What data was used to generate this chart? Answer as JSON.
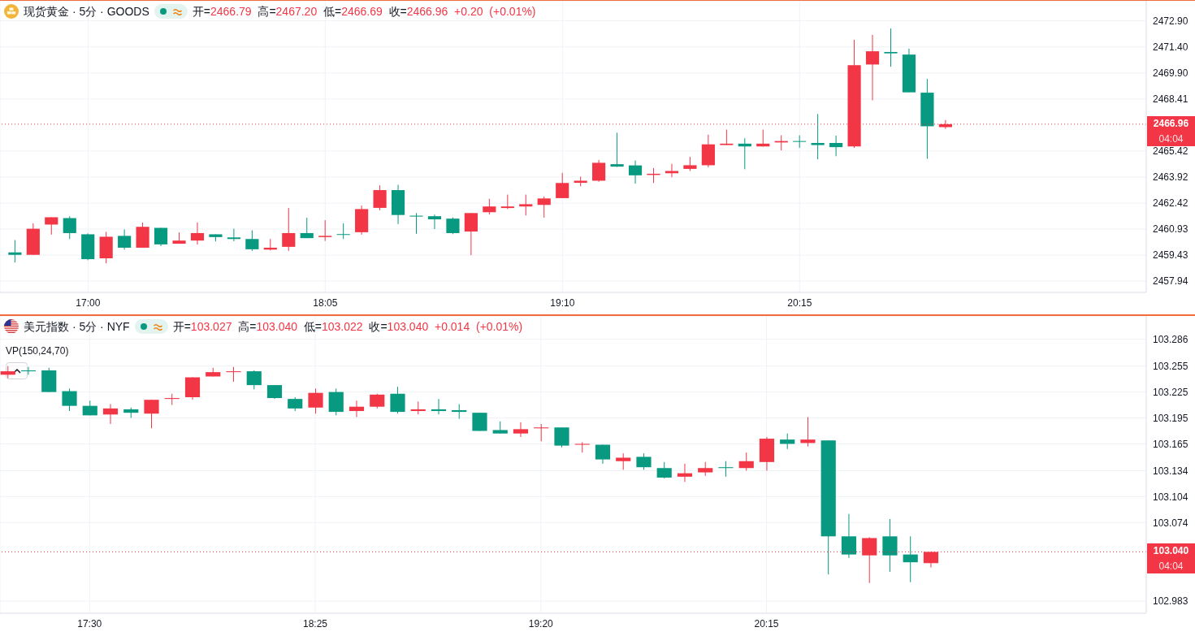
{
  "chart_data": [
    {
      "type": "candlestick",
      "title": "现货黄金 · 5分 · GOODS",
      "subtitle": "开=2466.79 高=2467.20 低=2466.69 收=2466.96 +0.20 (+0.01%)",
      "x": [
        16.6667,
        16.75,
        16.8333,
        16.9167,
        17,
        17.0833,
        17.1667,
        17.25,
        17.3333,
        17.4167,
        17.5,
        17.5833,
        17.6667,
        17.75,
        17.8333,
        17.9167,
        18,
        18.0833,
        18.1667,
        18.25,
        18.3333,
        18.4167,
        18.5,
        18.5833,
        18.6667,
        18.75,
        18.8333,
        18.9167,
        19,
        19.0833,
        19.1667,
        19.25,
        19.3333,
        19.4167,
        19.5,
        19.5833,
        19.6667,
        19.75,
        19.8333,
        19.9167,
        20,
        20.0833,
        20.1667,
        20.25,
        20.3333,
        20.4167,
        20.5,
        20.5833,
        20.6667,
        20.75,
        20.8333,
        20.9167
      ],
      "ohlc": [
        [
          2459.59,
          2460.3,
          2459.01,
          2459.45
        ],
        [
          2459.45,
          2461.26,
          2459.45,
          2460.95
        ],
        [
          2461.19,
          2461.61,
          2460.61,
          2461.61
        ],
        [
          2461.56,
          2461.67,
          2460.36,
          2460.7
        ],
        [
          2460.63,
          2460.68,
          2459.14,
          2459.2
        ],
        [
          2459.25,
          2460.77,
          2458.96,
          2460.49
        ],
        [
          2460.54,
          2460.91,
          2459.75,
          2459.86
        ],
        [
          2459.86,
          2461.31,
          2459.86,
          2461.06
        ],
        [
          2461.0,
          2461.0,
          2459.95,
          2460.05
        ],
        [
          2460.09,
          2460.74,
          2460.09,
          2460.27
        ],
        [
          2460.27,
          2461.31,
          2460.04,
          2460.7
        ],
        [
          2460.63,
          2460.63,
          2460.22,
          2460.47
        ],
        [
          2460.45,
          2460.95,
          2460.23,
          2460.36
        ],
        [
          2460.36,
          2460.86,
          2459.68,
          2459.77
        ],
        [
          2459.75,
          2460.36,
          2459.7,
          2459.86
        ],
        [
          2459.91,
          2462.14,
          2459.68,
          2460.7
        ],
        [
          2460.7,
          2461.58,
          2460.41,
          2460.41
        ],
        [
          2460.47,
          2461.44,
          2460.25,
          2460.54
        ],
        [
          2460.64,
          2461.26,
          2460.36,
          2460.61
        ],
        [
          2460.75,
          2462.28,
          2460.61,
          2462.08
        ],
        [
          2462.15,
          2463.44,
          2462.01,
          2463.17
        ],
        [
          2463.17,
          2463.48,
          2461.22,
          2461.74
        ],
        [
          2461.7,
          2461.85,
          2460.66,
          2461.65
        ],
        [
          2461.67,
          2461.76,
          2460.93,
          2461.49
        ],
        [
          2461.53,
          2461.6,
          2460.64,
          2460.7
        ],
        [
          2460.79,
          2461.85,
          2459.43,
          2461.85
        ],
        [
          2461.9,
          2462.67,
          2461.77,
          2462.23
        ],
        [
          2462.14,
          2462.91,
          2462.08,
          2462.23
        ],
        [
          2462.23,
          2462.91,
          2461.71,
          2462.36
        ],
        [
          2462.32,
          2462.8,
          2461.59,
          2462.69
        ],
        [
          2462.71,
          2464.16,
          2462.71,
          2463.58
        ],
        [
          2463.59,
          2463.94,
          2463.39,
          2463.71
        ],
        [
          2463.71,
          2464.9,
          2463.65,
          2464.74
        ],
        [
          2464.66,
          2466.47,
          2464.5,
          2464.52
        ],
        [
          2464.59,
          2464.87,
          2463.54,
          2464.02
        ],
        [
          2464.04,
          2464.44,
          2463.58,
          2464.11
        ],
        [
          2464.14,
          2464.68,
          2463.91,
          2464.27
        ],
        [
          2464.39,
          2465.08,
          2464.27,
          2464.6
        ],
        [
          2464.6,
          2466.36,
          2464.48,
          2465.8
        ],
        [
          2465.76,
          2466.65,
          2465.76,
          2465.84
        ],
        [
          2465.84,
          2466.15,
          2464.37,
          2465.68
        ],
        [
          2465.68,
          2466.65,
          2465.68,
          2465.84
        ],
        [
          2465.91,
          2466.32,
          2465.45,
          2465.99
        ],
        [
          2465.99,
          2466.32,
          2465.6,
          2465.95
        ],
        [
          2465.88,
          2467.54,
          2464.94,
          2465.76
        ],
        [
          2465.88,
          2466.3,
          2465.12,
          2465.64
        ],
        [
          2465.68,
          2471.81,
          2465.6,
          2470.35
        ],
        [
          2470.39,
          2472.09,
          2468.33,
          2471.15
        ],
        [
          2471.11,
          2472.46,
          2470.26,
          2471.03
        ],
        [
          2470.96,
          2471.3,
          2468.79,
          2468.79
        ],
        [
          2468.77,
          2469.56,
          2464.97,
          2466.84
        ],
        [
          2466.79,
          2467.2,
          2466.69,
          2466.96
        ]
      ],
      "colors": [
        "#089981",
        "#f23645",
        "#f23645",
        "#089981",
        "#089981",
        "#f23645",
        "#089981",
        "#f23645",
        "#089981",
        "#f23645",
        "#f23645",
        "#089981",
        "#089981",
        "#089981",
        "#f23645",
        "#f23645",
        "#089981",
        "#f23645",
        "#089981",
        "#f23645",
        "#f23645",
        "#089981",
        "#089981",
        "#089981",
        "#089981",
        "#f23645",
        "#f23645",
        "#f23645",
        "#f23645",
        "#f23645",
        "#f23645",
        "#f23645",
        "#f23645",
        "#089981",
        "#089981",
        "#f23645",
        "#f23645",
        "#f23645",
        "#f23645",
        "#f23645",
        "#089981",
        "#f23645",
        "#f23645",
        "#089981",
        "#089981",
        "#089981",
        "#f23645",
        "#f23645",
        "#089981",
        "#089981",
        "#089981",
        "#f23645"
      ],
      "xlim": [
        16.598,
        21.833
      ],
      "xticks": [
        {
          "value": 17,
          "label": "17:00"
        },
        {
          "value": 18.0833,
          "label": "18:05"
        },
        {
          "value": 19.1667,
          "label": "19:10"
        },
        {
          "value": 20.25,
          "label": "20:15"
        }
      ],
      "ylim": [
        2457.29,
        2474.05
      ],
      "yticks": [
        {
          "value": 2457.94,
          "label": "2457.94"
        },
        {
          "value": 2459.43,
          "label": "2459.43"
        },
        {
          "value": 2460.93,
          "label": "2460.93"
        },
        {
          "value": 2462.42,
          "label": "2462.42"
        },
        {
          "value": 2463.92,
          "label": "2463.92"
        },
        {
          "value": 2465.42,
          "label": "2465.42"
        },
        {
          "value": 2468.41,
          "label": "2468.41"
        },
        {
          "value": 2469.9,
          "label": "2469.90"
        },
        {
          "value": 2471.4,
          "label": "2471.40"
        },
        {
          "value": 2472.9,
          "label": "2472.90"
        }
      ],
      "grid": true,
      "ref_lines": [
        {
          "axis": "y",
          "value": 2466.96,
          "label": "2466.96",
          "color": "#f23645",
          "line_style": "dotted"
        }
      ],
      "annotations": [
        "04:04"
      ]
    },
    {
      "type": "candlestick",
      "title": "美元指数 · 5分 · NYF",
      "subtitle": "开=103.027 高=103.040 低=103.022 收=103.040 +0.014 (+0.01%)",
      "x": [
        17.1667,
        17.25,
        17.3333,
        17.4167,
        17.5,
        17.5833,
        17.6667,
        17.75,
        17.8333,
        17.9167,
        18,
        18.0833,
        18.1667,
        18.25,
        18.3333,
        18.4167,
        18.5,
        18.5833,
        18.6667,
        18.75,
        18.8333,
        18.9167,
        19,
        19.0833,
        19.1667,
        19.25,
        19.3333,
        19.4167,
        19.5,
        19.5833,
        19.6667,
        19.75,
        19.8333,
        19.9167,
        20,
        20.0833,
        20.1667,
        20.25,
        20.3333,
        20.4167,
        20.5,
        20.5833,
        20.6667,
        20.75,
        20.8333,
        20.9167
      ],
      "ohlc": [
        [
          103.245,
          103.255,
          103.241,
          103.249
        ],
        [
          103.25,
          103.254,
          103.245,
          103.249
        ],
        [
          103.25,
          103.253,
          103.225,
          103.225
        ],
        [
          103.226,
          103.229,
          103.203,
          103.209
        ],
        [
          103.209,
          103.215,
          103.198,
          103.198
        ],
        [
          103.199,
          103.211,
          103.188,
          103.206
        ],
        [
          103.205,
          103.207,
          103.195,
          103.201
        ],
        [
          103.2,
          103.216,
          103.183,
          103.216
        ],
        [
          103.217,
          103.223,
          103.21,
          103.218
        ],
        [
          103.219,
          103.242,
          103.216,
          103.242
        ],
        [
          103.243,
          103.253,
          103.243,
          103.248
        ],
        [
          103.248,
          103.254,
          103.237,
          103.249
        ],
        [
          103.249,
          103.25,
          103.228,
          103.233
        ],
        [
          103.233,
          103.233,
          103.217,
          103.218
        ],
        [
          103.217,
          103.219,
          103.203,
          103.206
        ],
        [
          103.207,
          103.229,
          103.2,
          103.224
        ],
        [
          103.225,
          103.229,
          103.198,
          103.202
        ],
        [
          103.203,
          103.215,
          103.196,
          103.208
        ],
        [
          103.208,
          103.223,
          103.206,
          103.222
        ],
        [
          103.223,
          103.231,
          103.2,
          103.202
        ],
        [
          103.203,
          103.214,
          103.199,
          103.205
        ],
        [
          103.205,
          103.217,
          103.199,
          103.203
        ],
        [
          103.204,
          103.211,
          103.194,
          103.202
        ],
        [
          103.201,
          103.201,
          103.18,
          103.18
        ],
        [
          103.181,
          103.191,
          103.177,
          103.177
        ],
        [
          103.177,
          103.19,
          103.173,
          103.182
        ],
        [
          103.183,
          103.188,
          103.168,
          103.184
        ],
        [
          103.184,
          103.184,
          103.161,
          103.163
        ],
        [
          103.164,
          103.167,
          103.155,
          103.165
        ],
        [
          103.164,
          103.164,
          103.142,
          103.147
        ],
        [
          103.145,
          103.154,
          103.135,
          103.149
        ],
        [
          103.15,
          103.154,
          103.135,
          103.138
        ],
        [
          103.137,
          103.144,
          103.125,
          103.126
        ],
        [
          103.127,
          103.142,
          103.121,
          103.131
        ],
        [
          103.132,
          103.144,
          103.128,
          103.137
        ],
        [
          103.138,
          103.145,
          103.127,
          103.137
        ],
        [
          103.137,
          103.155,
          103.134,
          103.145
        ],
        [
          103.144,
          103.173,
          103.134,
          103.171
        ],
        [
          103.17,
          103.177,
          103.159,
          103.165
        ],
        [
          103.166,
          103.196,
          103.162,
          103.17
        ],
        [
          103.169,
          103.169,
          103.014,
          103.058
        ],
        [
          103.058,
          103.084,
          103.033,
          103.037
        ],
        [
          103.036,
          103.057,
          103.004,
          103.056
        ],
        [
          103.058,
          103.078,
          103.017,
          103.036
        ],
        [
          103.037,
          103.058,
          103.005,
          103.028
        ],
        [
          103.027,
          103.04,
          103.022,
          103.04
        ]
      ],
      "colors": [
        "#f23645",
        "#089981",
        "#089981",
        "#089981",
        "#089981",
        "#f23645",
        "#089981",
        "#f23645",
        "#f23645",
        "#f23645",
        "#f23645",
        "#f23645",
        "#089981",
        "#089981",
        "#089981",
        "#f23645",
        "#089981",
        "#f23645",
        "#f23645",
        "#089981",
        "#f23645",
        "#089981",
        "#089981",
        "#089981",
        "#089981",
        "#f23645",
        "#f23645",
        "#089981",
        "#f23645",
        "#089981",
        "#f23645",
        "#089981",
        "#089981",
        "#f23645",
        "#f23645",
        "#089981",
        "#f23645",
        "#f23645",
        "#089981",
        "#f23645",
        "#089981",
        "#089981",
        "#f23645",
        "#089981",
        "#089981",
        "#f23645"
      ],
      "xlim": [
        17.136,
        21.793
      ],
      "xticks": [
        {
          "value": 17.5,
          "label": "17:30"
        },
        {
          "value": 18.4167,
          "label": "18:25"
        },
        {
          "value": 19.3333,
          "label": "19:20"
        },
        {
          "value": 20.25,
          "label": "20:15"
        }
      ],
      "ylim": [
        102.969,
        103.313
      ],
      "yticks": [
        102.983,
        103.074,
        103.104,
        103.134,
        103.165,
        103.195,
        103.225,
        103.255,
        103.286
      ],
      "grid": true,
      "ref_lines": [
        {
          "axis": "y",
          "value": 103.04,
          "label": "103.040",
          "color": "#f23645",
          "line_style": "dotted"
        }
      ],
      "annotations": [
        "VP(150,24,70)",
        "04:04"
      ]
    }
  ]
}
